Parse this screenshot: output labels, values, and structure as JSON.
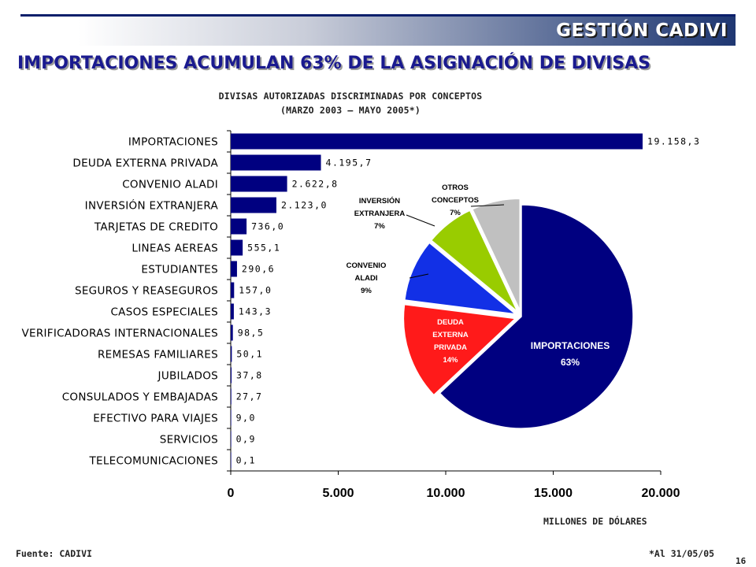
{
  "header": {
    "brand": "GESTIÓN CADIVI",
    "headline": "IMPORTACIONES ACUMULAN 63% DE LA ASIGNACIÓN DE DIVISAS"
  },
  "chart_data": [
    {
      "type": "bar",
      "orientation": "horizontal",
      "title": "DIVISAS AUTORIZADAS DISCRIMINADAS POR CONCEPTOS",
      "subtitle": "(MARZO 2003 – MAYO 2005*)",
      "xlabel": "MILLONES DE DÓLARES",
      "xlim": [
        0,
        20000
      ],
      "xticks": [
        "0",
        "5.000",
        "10.000",
        "15.000",
        "20.000"
      ],
      "categories": [
        "IMPORTACIONES",
        "DEUDA EXTERNA PRIVADA",
        "CONVENIO ALADI",
        "INVERSIÓN EXTRANJERA",
        "TARJETAS DE CREDITO",
        "LINEAS AEREAS",
        "ESTUDIANTES",
        "SEGUROS Y REASEGUROS",
        "CASOS ESPECIALES",
        "VERIFICADORAS INTERNACIONALES",
        "REMESAS FAMILIARES",
        "JUBILADOS",
        "CONSULADOS Y EMBAJADAS",
        "EFECTIVO PARA VIAJES",
        "SERVICIOS",
        "TELECOMUNICACIONES"
      ],
      "values": [
        19158.3,
        4195.7,
        2622.8,
        2123.0,
        736.0,
        555.1,
        290.6,
        157.0,
        143.3,
        98.5,
        50.1,
        37.8,
        27.7,
        9.0,
        0.9,
        0.1
      ],
      "value_labels": [
        "19.158,3",
        "4.195,7",
        "2.622,8",
        "2.123,0",
        "736,0",
        "555,1",
        "290,6",
        "157,0",
        "143,3",
        "98,5",
        "50,1",
        "37,8",
        "27,7",
        "9,0",
        "0,9",
        "0,1"
      ],
      "bar_color": "#000080"
    },
    {
      "type": "pie",
      "slices": [
        {
          "label": [
            "IMPORTACIONES",
            "63%"
          ],
          "value": 63,
          "color": "#000080",
          "text_color": "#ffffff"
        },
        {
          "label": [
            "DEUDA",
            "EXTERNA",
            "PRIVADA",
            "14%"
          ],
          "value": 14,
          "color": "#ff1a1a",
          "text_color": "#ffffff"
        },
        {
          "label": [
            "CONVENIO",
            "ALADI",
            "9%"
          ],
          "value": 9,
          "color": "#1230e6",
          "text_color": "#000000"
        },
        {
          "label": [
            "INVERSIÓN",
            "EXTRANJERA",
            "7%"
          ],
          "value": 7,
          "color": "#99cc00",
          "text_color": "#000000"
        },
        {
          "label": [
            "OTROS",
            "CONCEPTOS",
            "7%"
          ],
          "value": 7,
          "color": "#c0c0c0",
          "text_color": "#000000"
        }
      ]
    }
  ],
  "footer": {
    "source": "Fuente: CADIVI",
    "as_of": "*Al 31/05/05",
    "page": "16"
  }
}
